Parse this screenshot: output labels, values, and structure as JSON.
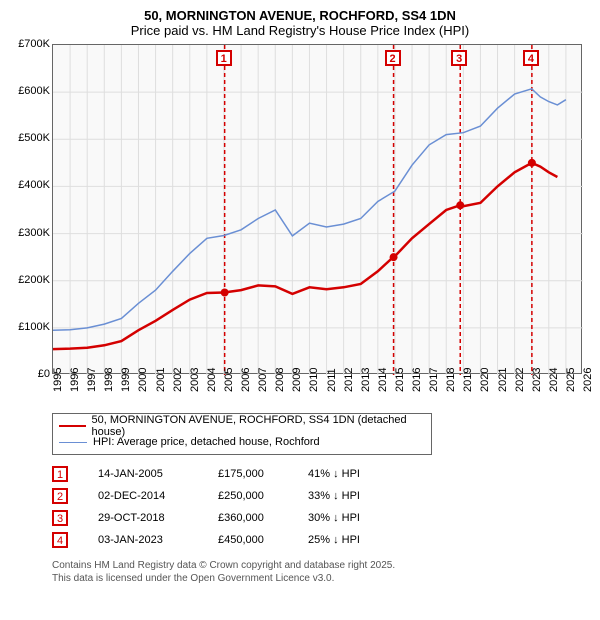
{
  "title": {
    "line1": "50, MORNINGTON AVENUE, ROCHFORD, SS4 1DN",
    "line2": "Price paid vs. HM Land Registry's House Price Index (HPI)"
  },
  "chart": {
    "type": "line",
    "background_color": "#f9f9f9",
    "border_color": "#666666",
    "grid_color": "#dedede",
    "ylim": [
      0,
      700000
    ],
    "ytick_step": 100000,
    "ytick_labels": [
      "£0",
      "£100K",
      "£200K",
      "£300K",
      "£400K",
      "£500K",
      "£600K",
      "£700K"
    ],
    "xlim": [
      1995,
      2026
    ],
    "xtick_step": 1,
    "xtick_labels": [
      "1995",
      "1996",
      "1997",
      "1998",
      "1999",
      "2000",
      "2001",
      "2002",
      "2003",
      "2004",
      "2005",
      "2006",
      "2007",
      "2008",
      "2009",
      "2010",
      "2011",
      "2012",
      "2013",
      "2014",
      "2015",
      "2016",
      "2017",
      "2018",
      "2019",
      "2020",
      "2021",
      "2022",
      "2023",
      "2024",
      "2025",
      "2026"
    ],
    "label_fontsize": 11,
    "series": [
      {
        "name": "50, MORNINGTON AVENUE, ROCHFORD, SS4 1DN (detached house)",
        "color": "#d40000",
        "line_width": 2.5,
        "points": [
          [
            1995,
            55000
          ],
          [
            1996,
            56000
          ],
          [
            1997,
            58000
          ],
          [
            1998,
            63000
          ],
          [
            1999,
            72000
          ],
          [
            2000,
            95000
          ],
          [
            2001,
            115000
          ],
          [
            2002,
            138000
          ],
          [
            2003,
            160000
          ],
          [
            2004,
            174000
          ],
          [
            2005,
            175000
          ],
          [
            2006,
            180000
          ],
          [
            2007,
            190000
          ],
          [
            2008,
            188000
          ],
          [
            2009,
            172000
          ],
          [
            2010,
            186000
          ],
          [
            2011,
            182000
          ],
          [
            2012,
            186000
          ],
          [
            2013,
            193000
          ],
          [
            2014,
            220000
          ],
          [
            2014.9,
            250000
          ],
          [
            2015,
            252000
          ],
          [
            2016,
            290000
          ],
          [
            2017,
            320000
          ],
          [
            2018,
            350000
          ],
          [
            2018.8,
            360000
          ],
          [
            2019,
            358000
          ],
          [
            2020,
            365000
          ],
          [
            2021,
            400000
          ],
          [
            2022,
            430000
          ],
          [
            2023,
            450000
          ],
          [
            2023.5,
            442000
          ],
          [
            2024,
            430000
          ],
          [
            2024.5,
            420000
          ]
        ],
        "markers": [
          {
            "label": "1",
            "x": 2005.04,
            "y": 175000,
            "date": "14-JAN-2005",
            "price": "£175,000",
            "diff": "41% ↓ HPI"
          },
          {
            "label": "2",
            "x": 2014.92,
            "y": 250000,
            "date": "02-DEC-2014",
            "price": "£250,000",
            "diff": "33% ↓ HPI"
          },
          {
            "label": "3",
            "x": 2018.82,
            "y": 360000,
            "date": "29-OCT-2018",
            "price": "£360,000",
            "diff": "30% ↓ HPI"
          },
          {
            "label": "4",
            "x": 2023.01,
            "y": 450000,
            "date": "03-JAN-2023",
            "price": "£450,000",
            "diff": "25% ↓ HPI"
          }
        ]
      },
      {
        "name": "HPI: Average price, detached house, Rochford",
        "color": "#6a8fd4",
        "line_width": 1.5,
        "points": [
          [
            1995,
            95000
          ],
          [
            1996,
            96000
          ],
          [
            1997,
            100000
          ],
          [
            1998,
            108000
          ],
          [
            1999,
            120000
          ],
          [
            2000,
            152000
          ],
          [
            2001,
            180000
          ],
          [
            2002,
            220000
          ],
          [
            2003,
            258000
          ],
          [
            2004,
            290000
          ],
          [
            2005,
            296000
          ],
          [
            2006,
            308000
          ],
          [
            2007,
            332000
          ],
          [
            2008,
            350000
          ],
          [
            2009,
            295000
          ],
          [
            2010,
            322000
          ],
          [
            2011,
            314000
          ],
          [
            2012,
            320000
          ],
          [
            2013,
            332000
          ],
          [
            2014,
            368000
          ],
          [
            2015,
            390000
          ],
          [
            2016,
            445000
          ],
          [
            2017,
            488000
          ],
          [
            2018,
            510000
          ],
          [
            2019,
            514000
          ],
          [
            2020,
            528000
          ],
          [
            2021,
            566000
          ],
          [
            2022,
            596000
          ],
          [
            2023,
            607000
          ],
          [
            2023.5,
            590000
          ],
          [
            2024,
            580000
          ],
          [
            2024.5,
            573000
          ],
          [
            2025,
            584000
          ]
        ]
      }
    ],
    "marker_style": {
      "box_border_color": "#d40000",
      "vline_color": "#d40000",
      "vline_dash": "4,3",
      "point_fill": "#d40000"
    }
  },
  "legend": {
    "border_color": "#666666"
  },
  "footer": {
    "line1": "Contains HM Land Registry data © Crown copyright and database right 2025.",
    "line2": "This data is licensed under the Open Government Licence v3.0."
  }
}
